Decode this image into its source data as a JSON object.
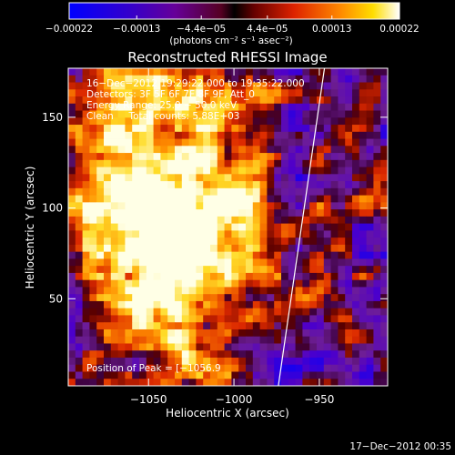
{
  "chart_data": {
    "type": "heatmap",
    "title": "Reconstructed RHESSI Image",
    "xlabel": "Heliocentric X (arcsec)",
    "ylabel": "Heliocentric Y (arcsec)",
    "xlim": [
      -1097,
      -910
    ],
    "ylim": [
      2,
      177
    ],
    "x_ticks": [
      {
        "value": -1050,
        "label": "−1050"
      },
      {
        "value": -1000,
        "label": "−1000"
      },
      {
        "value": -950,
        "label": "−950"
      }
    ],
    "y_ticks": [
      {
        "value": 50,
        "label": "50"
      },
      {
        "value": 100,
        "label": "100"
      },
      {
        "value": 150,
        "label": "150"
      }
    ],
    "colorbar": {
      "range": [
        -0.00022,
        0.00022
      ],
      "ticks": [
        {
          "value": -0.00022,
          "label": "−0.00022"
        },
        {
          "value": -0.00013,
          "label": "−0.00013"
        },
        {
          "value": -4.4e-05,
          "label": "−4.4e−05"
        },
        {
          "value": 4.4e-05,
          "label": "4.4e−05"
        },
        {
          "value": 0.00013,
          "label": "0.00013"
        },
        {
          "value": 0.00022,
          "label": "0.00022"
        }
      ],
      "unit_label": "(photons cm⁻² s⁻¹ asec⁻²)"
    },
    "annotations": [
      "16−Dec−2012 19:29:22.000 to 19:35:22.000",
      "Detectors: 3F 5F 6F 7F 8F 9F, Att_0",
      "Energy Range: 25.0 − 50.0 keV",
      "Clean     Total counts: 5.88E+03"
    ],
    "peak_label": "Position of Peak = [−1056.9",
    "timestamp": "17−Dec−2012 00:35",
    "limb_line": [
      [
        -974,
        2
      ],
      [
        -947,
        177
      ]
    ],
    "colors": {
      "background": "#000000",
      "foreground": "#ffffff"
    }
  }
}
